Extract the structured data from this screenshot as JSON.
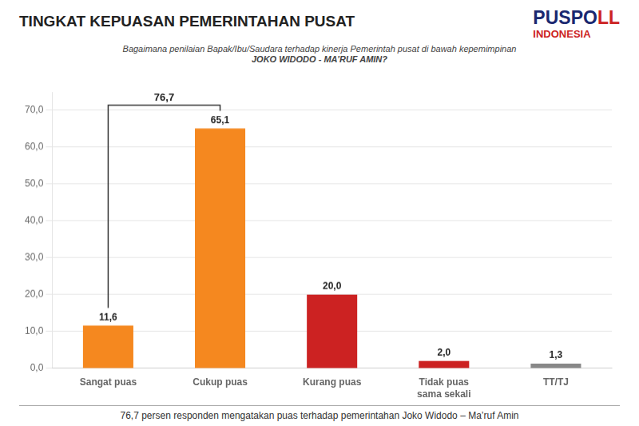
{
  "chart_data": {
    "type": "bar",
    "title": "TINGKAT KEPUASAN PEMERINTAHAN PUSAT",
    "subtitle": [
      "Bagaimana penilaian Bapak/Ibu/Saudara terhadap kinerja Pemerintah pusat di bawah kepemimpinan",
      "JOKO WIDODO - MA’RUF AMIN?"
    ],
    "footer": "76,7 persen responden mengatakan puas terhadap pemerintahan Joko Widodo – Ma’ruf Amin",
    "logo": [
      {
        "text": "PUSP",
        "color": "#1A2870"
      },
      {
        "text": "O",
        "color": "#1A2870"
      },
      {
        "text": "LL",
        "color": "#CC2222"
      }
    ],
    "logo_subtitle": {
      "text": "INDONESIA",
      "color": "#CC2222"
    },
    "categories": [
      "Sangat puas",
      "Cukup puas",
      "Kurang puas",
      "Tidak puas\nsama sekali",
      "TT/TJ"
    ],
    "values": [
      11.6,
      65.1,
      20.0,
      2.0,
      1.3
    ],
    "value_labels": [
      "11,6",
      "65,1",
      "20,0",
      "2,0",
      "1,3"
    ],
    "data_labels": true,
    "colors": [
      "#F5881F",
      "#F5881F",
      "#CC2222",
      "#CC2222",
      "#888888"
    ],
    "ylim": [
      0,
      75
    ],
    "yticks": [
      {
        "value": 0,
        "label": "0,0"
      },
      {
        "value": 10,
        "label": "10,0"
      },
      {
        "value": 20,
        "label": "20,0"
      },
      {
        "value": 30,
        "label": "30,0"
      },
      {
        "value": 40,
        "label": "40,0"
      },
      {
        "value": 50,
        "label": "50,0"
      },
      {
        "value": 60,
        "label": "60,0"
      },
      {
        "value": 70,
        "label": "70,0"
      }
    ],
    "grid": true,
    "annotations": [
      {
        "text": "76,7",
        "categories": [
          "Sangat puas",
          "Cukup puas"
        ]
      }
    ]
  }
}
